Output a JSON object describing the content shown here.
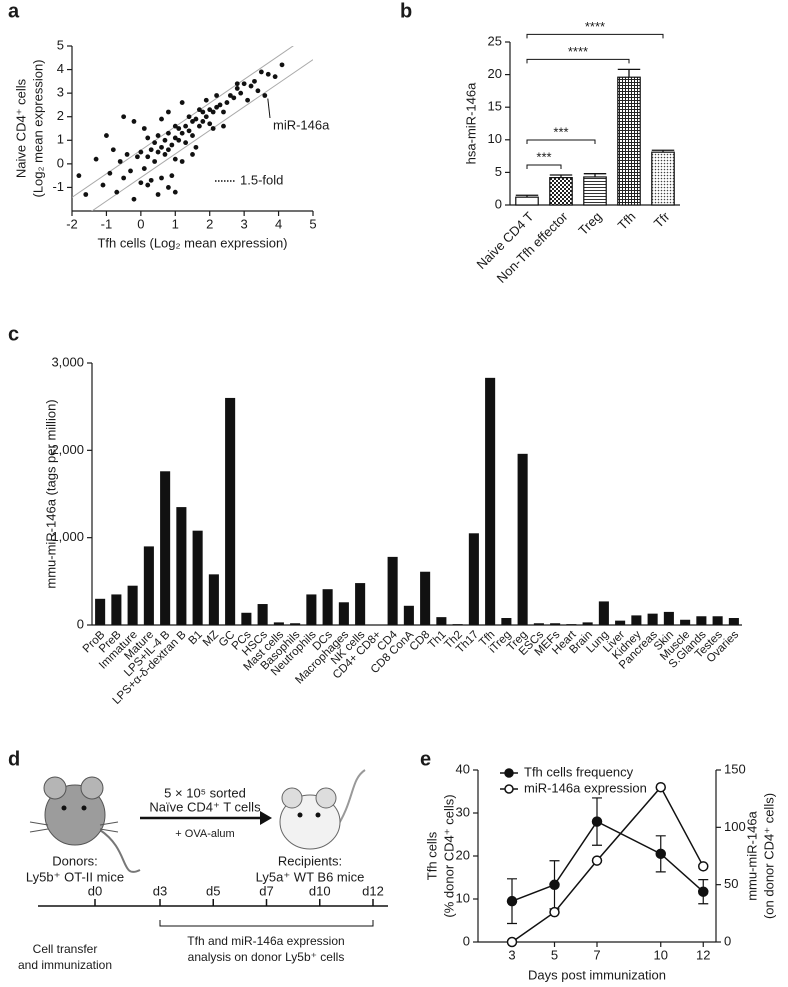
{
  "chart_data": [
    {
      "type": "scatter",
      "panel": "a",
      "xlabel": "Tfh cells (Log₂ mean expression)",
      "ylabel": [
        "Naive CD4⁺ cells",
        "(Log₂ mean expression)"
      ],
      "x": [
        -1.8,
        -1.6,
        -1.3,
        -1.1,
        -1.0,
        -0.9,
        -0.8,
        -0.7,
        -0.6,
        -0.5,
        -0.5,
        -0.4,
        -0.3,
        -0.2,
        -0.1,
        0,
        0,
        0.1,
        0.1,
        0.2,
        0.2,
        0.3,
        0.3,
        0.4,
        0.4,
        0.5,
        0.5,
        0.5,
        0.6,
        0.6,
        0.7,
        0.7,
        0.8,
        0.8,
        0.8,
        0.9,
        0.9,
        1.0,
        1.0,
        1.0,
        1.1,
        1.1,
        1.2,
        1.2,
        1.3,
        1.3,
        1.4,
        1.4,
        1.5,
        1.5,
        1.6,
        1.6,
        1.7,
        1.7,
        1.8,
        1.8,
        1.9,
        1.9,
        2.0,
        2.0,
        2.1,
        2.1,
        2.2,
        2.2,
        2.3,
        2.4,
        2.5,
        2.6,
        2.7,
        2.8,
        2.9,
        3.0,
        3.1,
        3.2,
        3.3,
        3.4,
        3.5,
        3.6,
        3.7,
        3.9,
        4.1,
        0.2,
        0.6,
        1.0,
        1.5,
        -0.2,
        0.8,
        1.2,
        2.4,
        2.8
      ],
      "y": [
        -0.5,
        -1.3,
        0.2,
        -0.9,
        1.2,
        -0.4,
        0.6,
        -1.2,
        0.1,
        -0.6,
        2.0,
        0.4,
        -0.3,
        1.8,
        0.3,
        -0.8,
        0.5,
        1.5,
        -0.2,
        0.3,
        1.1,
        -0.7,
        0.6,
        0.9,
        0.1,
        1.2,
        0.5,
        -1.3,
        0.7,
        1.9,
        0.4,
        1.0,
        1.3,
        0.6,
        2.2,
        0.8,
        -0.5,
        1.1,
        1.6,
        0.2,
        1.0,
        1.5,
        1.3,
        2.6,
        0.9,
        1.6,
        1.4,
        2.0,
        1.2,
        1.8,
        1.9,
        0.7,
        1.6,
        2.3,
        1.8,
        2.2,
        2.0,
        2.7,
        1.7,
        2.3,
        2.2,
        1.5,
        2.4,
        2.9,
        2.5,
        2.2,
        2.6,
        2.9,
        2.8,
        3.2,
        3.0,
        3.4,
        2.7,
        3.3,
        3.5,
        3.1,
        3.9,
        2.9,
        3.8,
        3.7,
        4.2,
        -0.9,
        -0.6,
        -1.2,
        0.4,
        -1.5,
        -1.0,
        0.1,
        1.6,
        3.4
      ],
      "color": "#111111",
      "xlim": [
        -2,
        5
      ],
      "xticks": [
        -2,
        -1,
        0,
        1,
        2,
        3,
        4,
        5
      ],
      "ylim": [
        -2,
        5
      ],
      "yticks": [
        -1,
        0,
        1,
        2,
        3,
        4,
        5
      ],
      "fold_lines": {
        "label": "1.5-fold",
        "offsets": [
          -0.58,
          0.58
        ],
        "color": "#aaaaaa"
      },
      "annotations": [
        {
          "text": "miR-146a",
          "x": 3.6,
          "y": 2.9
        }
      ]
    },
    {
      "type": "bar",
      "panel": "b",
      "ylabel": "hsa-miR-146a",
      "categories": [
        "Naive CD4 T",
        "Non-Tfh effector",
        "Treg",
        "Tfh",
        "Tfr"
      ],
      "values": [
        1.2,
        4.2,
        4.3,
        19.6,
        8.1
      ],
      "errors": [
        0.3,
        0.4,
        0.5,
        1.2,
        0.3
      ],
      "patterns": [
        "none",
        "checker",
        "hlines",
        "crosshatch",
        "dots"
      ],
      "ylim": [
        0,
        25
      ],
      "yticks": [
        0,
        5,
        10,
        15,
        20,
        25
      ],
      "comparisons": [
        {
          "between": [
            "Naive CD4 T",
            "Non-Tfh effector"
          ],
          "label": "***"
        },
        {
          "between": [
            "Naive CD4 T",
            "Treg"
          ],
          "label": "***"
        },
        {
          "between": [
            "Naive CD4 T",
            "Tfh"
          ],
          "label": "****"
        },
        {
          "between": [
            "Naive CD4 T",
            "Tfr"
          ],
          "label": "****"
        }
      ]
    },
    {
      "type": "bar",
      "panel": "c",
      "ylabel": "mmu-miR-146a (tags per million)",
      "categories": [
        "ProB",
        "PreB",
        "Immature",
        "Mature",
        "LPS+IL-4 B",
        "LPS+α-δ-dextran B",
        "B1",
        "MZ",
        "GC",
        "PCs",
        "HSCs",
        "Mast cells",
        "Basophils",
        "Neutrophils",
        "DCs",
        "Macrophages",
        "NK cells",
        "CD4+ CD8+",
        "CD4",
        "CD8 ConA",
        "CD8",
        "Th1",
        "Th2",
        "Th17",
        "Tfh",
        "iTreg",
        "Treg",
        "ESCs",
        "MEFs",
        "Heart",
        "Brain",
        "Lung",
        "Liver",
        "Kidney",
        "Pancreas",
        "Skin",
        "Muscle",
        "S.Glands",
        "Testes",
        "Ovaries"
      ],
      "values": [
        300,
        350,
        450,
        900,
        1760,
        1350,
        1080,
        580,
        2600,
        140,
        240,
        30,
        20,
        350,
        410,
        260,
        480,
        0,
        780,
        220,
        610,
        90,
        10,
        1050,
        2830,
        80,
        1960,
        20,
        20,
        10,
        30,
        270,
        50,
        110,
        130,
        150,
        60,
        100,
        100,
        80
      ],
      "color": "#111111",
      "ylim": [
        0,
        3000
      ],
      "yticks": [
        0,
        {
          "value": 1000,
          "label": "1,000"
        },
        {
          "value": 2000,
          "label": "2,000"
        },
        {
          "value": 3000,
          "label": "3,000"
        }
      ]
    },
    {
      "type": "line",
      "panel": "e",
      "xlabel": "Days post immunization",
      "ylabel": [
        "Tfh cells",
        "(% donor CD4⁺ cells)"
      ],
      "y2label": [
        "mmu-miR-146a",
        "(on donor CD4⁺ cells)"
      ],
      "x": [
        3,
        5,
        7,
        10,
        12
      ],
      "series": [
        {
          "name": "Tfh cells frequency",
          "color": "#111111",
          "marker": "filled",
          "values": [
            9.5,
            13.3,
            28,
            20.5,
            11.7
          ],
          "errors": [
            5.2,
            5.6,
            5.5,
            4.2,
            2.8
          ]
        },
        {
          "name": "miR-146a expression",
          "color": "#111111",
          "marker": "open",
          "axis": "y2",
          "values": [
            0,
            26,
            71,
            135,
            66
          ]
        }
      ],
      "xlim": [
        1.4,
        12.6
      ],
      "xticks": [
        3,
        5,
        7,
        10,
        12
      ],
      "ylim": [
        0,
        40
      ],
      "yticks": [
        0,
        10,
        20,
        30,
        40
      ],
      "y2lim": [
        0,
        150
      ],
      "y2ticks": [
        0,
        50,
        100,
        150
      ],
      "legend": "upper left"
    }
  ],
  "diagram": {
    "panel": "d",
    "transfer": [
      "5 × 10⁵ sorted",
      "Naïve CD4⁺ T cells",
      "+ OVA-alum"
    ],
    "donors": [
      "Donors:",
      "Ly5b⁺ OT-II mice"
    ],
    "recipients": [
      "Recipients:",
      "Ly5a⁺ WT B6 mice"
    ],
    "timeline": [
      "d0",
      "d3",
      "d5",
      "d7",
      "d10",
      "d12"
    ],
    "start_note": [
      "Cell transfer",
      "and immunization"
    ],
    "analysis_note": [
      "Tfh and miR-146a expression",
      "analysis on donor Ly5b⁺ cells"
    ]
  }
}
